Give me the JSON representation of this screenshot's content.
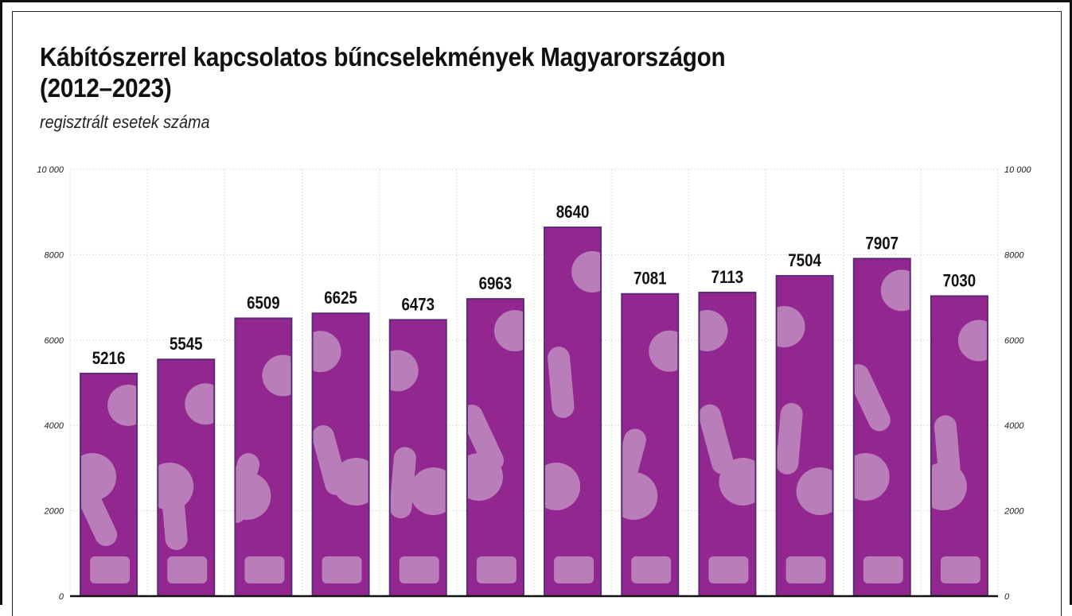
{
  "chart_data": {
    "type": "bar",
    "title": "Kábítószerrel kapcsolatos bűncselekmények Magyarországon",
    "title_line2": "(2012–2023)",
    "subtitle": "regisztrált esetek száma",
    "values": [
      5216,
      5545,
      6509,
      6625,
      6473,
      6963,
      8640,
      7081,
      7113,
      7504,
      7907,
      7030
    ],
    "ylim": [
      0,
      10000
    ],
    "yticks": [
      0,
      2000,
      4000,
      6000,
      8000,
      10000
    ],
    "ytick_labels": [
      "0",
      "2000",
      "4000",
      "6000",
      "8000",
      "10 000"
    ],
    "axis_both_sides": true,
    "grid": true,
    "colors": {
      "bar": "#92278f",
      "bar_border": "#5b2a78",
      "pattern": "#b97dba"
    }
  }
}
